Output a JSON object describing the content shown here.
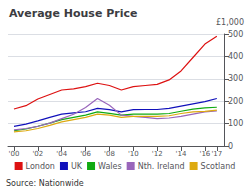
{
  "chart_data": {
    "type": "line",
    "title": "Average House Price",
    "ylabel": "£1,000",
    "annotations": [
      "Source: Nationwide"
    ],
    "x": [
      2000,
      2001,
      2002,
      2003,
      2004,
      2005,
      2006,
      2007,
      2008,
      2009,
      2010,
      2011,
      2012,
      2013,
      2014,
      2015,
      2016,
      2017
    ],
    "series": [
      {
        "name": "London",
        "color": "#dd1111",
        "values": [
          165,
          180,
          210,
          230,
          250,
          255,
          265,
          280,
          270,
          250,
          265,
          270,
          275,
          295,
          335,
          395,
          455,
          490
        ]
      },
      {
        "name": "UK",
        "color": "#1111bb",
        "values": [
          88,
          98,
          112,
          128,
          142,
          148,
          153,
          168,
          162,
          152,
          162,
          163,
          163,
          168,
          178,
          188,
          198,
          212
        ]
      },
      {
        "name": "Wales",
        "color": "#11aa11",
        "values": [
          68,
          76,
          88,
          102,
          118,
          128,
          138,
          152,
          146,
          138,
          142,
          142,
          142,
          145,
          155,
          165,
          170,
          173
        ]
      },
      {
        "name": "Nth. Ireland",
        "color": "#9966bb",
        "values": [
          72,
          78,
          88,
          102,
          122,
          142,
          172,
          212,
          182,
          138,
          132,
          128,
          122,
          125,
          132,
          142,
          152,
          157
        ]
      },
      {
        "name": "Scotland",
        "color": "#ddaa11",
        "values": [
          63,
          68,
          78,
          92,
          108,
          118,
          128,
          142,
          138,
          128,
          132,
          132,
          132,
          135,
          145,
          152,
          155,
          160
        ]
      }
    ],
    "xlim": [
      1999.5,
      2017.6
    ],
    "xticks": [
      {
        "value": 2000,
        "label": "'00"
      },
      {
        "value": 2002,
        "label": "'02"
      },
      {
        "value": 2004,
        "label": "'04"
      },
      {
        "value": 2006,
        "label": "'06"
      },
      {
        "value": 2008,
        "label": "'08"
      },
      {
        "value": 2010,
        "label": "'10"
      },
      {
        "value": 2012,
        "label": "'12"
      },
      {
        "value": 2014,
        "label": "'14"
      },
      {
        "value": 2016,
        "label": "'16"
      },
      {
        "value": 2017,
        "label": "'17"
      }
    ],
    "ylim": [
      0,
      500
    ],
    "yticks": [
      0,
      100,
      200,
      300,
      400,
      500
    ],
    "grid": true,
    "legend": "bottom"
  }
}
